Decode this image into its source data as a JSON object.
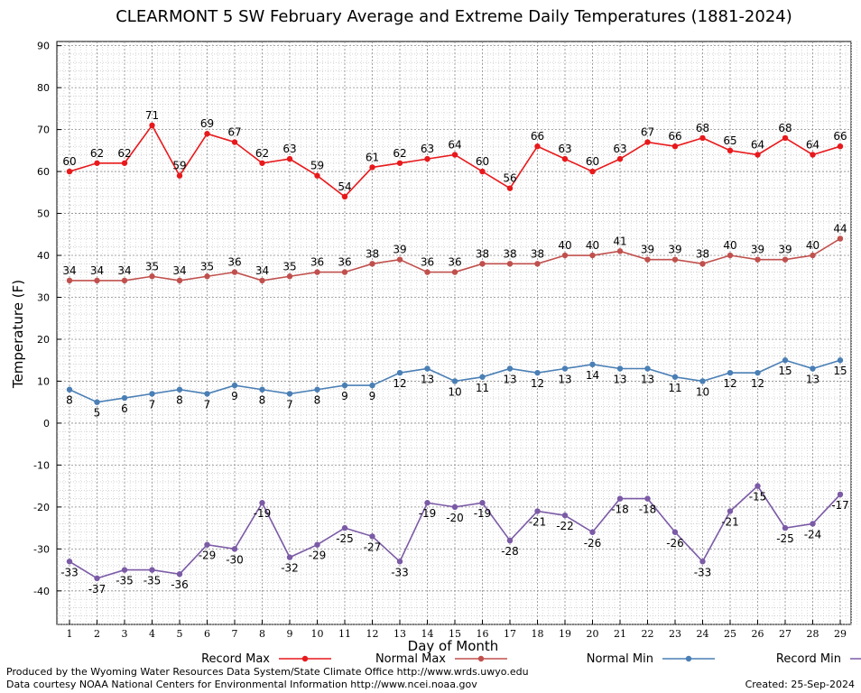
{
  "chart_data": {
    "type": "line",
    "title": "CLEARMONT 5 SW February Average and Extreme Daily Temperatures (1881-2024)",
    "xlabel": "Day of Month",
    "ylabel": "Temperature (F)",
    "x": [
      1,
      2,
      3,
      4,
      5,
      6,
      7,
      8,
      9,
      10,
      11,
      12,
      13,
      14,
      15,
      16,
      17,
      18,
      19,
      20,
      21,
      22,
      23,
      24,
      25,
      26,
      27,
      28,
      29
    ],
    "ylim": [
      -48,
      91
    ],
    "yticks": [
      -40,
      -30,
      -20,
      -10,
      0,
      10,
      20,
      30,
      40,
      50,
      60,
      70,
      80,
      90
    ],
    "grid": true,
    "legend_position": "bottom",
    "series": [
      {
        "name": "Record Max",
        "color": "#e8191c",
        "label_position": "above",
        "values": [
          60,
          62,
          62,
          71,
          59,
          69,
          67,
          62,
          63,
          59,
          54,
          61,
          62,
          63,
          64,
          60,
          56,
          66,
          63,
          60,
          63,
          67,
          66,
          68,
          65,
          64,
          68,
          64,
          66
        ]
      },
      {
        "name": "Normal Max",
        "color": "#c0504d",
        "label_position": "above",
        "values": [
          34,
          34,
          34,
          35,
          34,
          35,
          36,
          34,
          35,
          36,
          36,
          38,
          39,
          36,
          36,
          38,
          38,
          38,
          40,
          40,
          41,
          39,
          39,
          38,
          40,
          39,
          39,
          40,
          44
        ]
      },
      {
        "name": "Normal Min",
        "color": "#4a7fb5",
        "label_position": "below",
        "values": [
          8,
          5,
          6,
          7,
          8,
          7,
          9,
          8,
          7,
          8,
          9,
          9,
          12,
          13,
          10,
          11,
          13,
          12,
          13,
          14,
          13,
          13,
          11,
          10,
          12,
          12,
          15,
          13,
          15
        ]
      },
      {
        "name": "Record Min",
        "color": "#7b5aa6",
        "label_position": "below",
        "values": [
          -33,
          -37,
          -35,
          -35,
          -36,
          -29,
          -30,
          -19,
          -32,
          -29,
          -25,
          -27,
          -33,
          -19,
          -20,
          -19,
          -28,
          -21,
          -22,
          -26,
          -18,
          -18,
          -26,
          -33,
          -21,
          -15,
          -25,
          -24,
          -17
        ]
      }
    ]
  },
  "footer": {
    "line1": "Produced by the Wyoming Water Resources Data System/State Climate Office http://www.wrds.uwyo.edu",
    "line2": "Data courtesy NOAA National Centers for Environmental Information http://www.ncei.noaa.gov",
    "created": "Created: 25-Sep-2024"
  }
}
